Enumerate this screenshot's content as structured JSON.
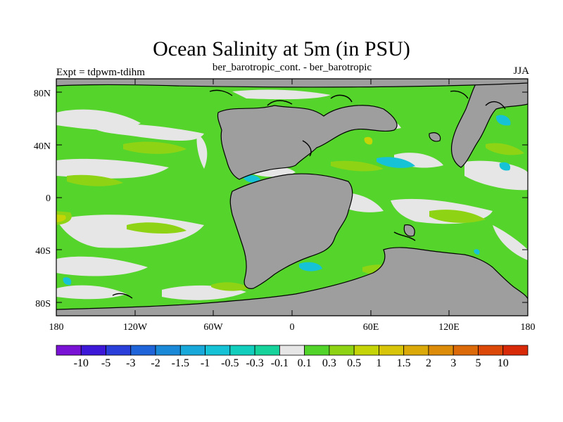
{
  "title": "Ocean Salinity at 5m (in PSU)",
  "subtitle": "ber_barotropic_cont. - ber_barotropic",
  "left_label": "Expt = tdpwm-tdihm",
  "right_label": "JJA",
  "lat_ticks": [
    "80N",
    "40N",
    "0",
    "40S",
    "80S"
  ],
  "lon_ticks": [
    "180",
    "120W",
    "60W",
    "0",
    "60E",
    "120E",
    "180"
  ],
  "colorbar": {
    "colors": [
      "#7a12d6",
      "#3d18d8",
      "#2a3fd9",
      "#1f64d8",
      "#1a8ad8",
      "#18a8d9",
      "#15c2d6",
      "#12cfbd",
      "#16d39c",
      "#e6e6e6",
      "#52d42a",
      "#8fd414",
      "#c4d407",
      "#d8c408",
      "#dcaa08",
      "#dc8c08",
      "#dc6a08",
      "#dc4808",
      "#d82a08"
    ],
    "labels": [
      "-10",
      "-5",
      "-3",
      "-2",
      "-1.5",
      "-1",
      "-0.5",
      "-0.3",
      "-0.1",
      "0.1",
      "0.3",
      "0.5",
      "1",
      "1.5",
      "2",
      "3",
      "5",
      "10"
    ]
  },
  "colors": {
    "ocean_fill": "#55d42b",
    "land": "#9e9e9e",
    "neutral": "#e6e6e6"
  }
}
